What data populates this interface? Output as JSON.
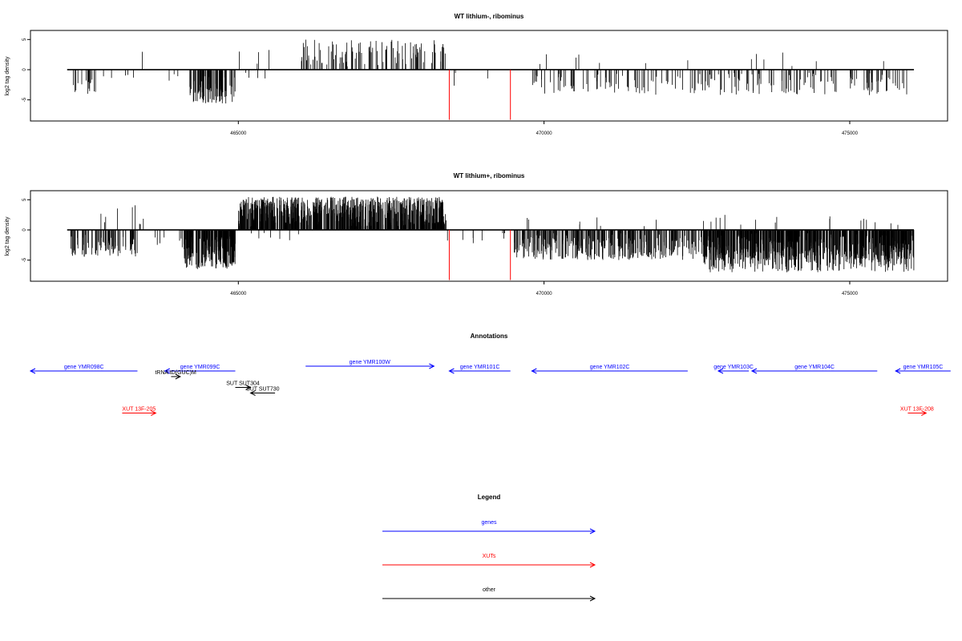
{
  "chart_data": [
    {
      "type": "bar",
      "title": "WT lithium-, ribominus",
      "ylabel": "log2 tag density",
      "xlabel": "",
      "xlim": [
        461600,
        476600
      ],
      "ylim": [
        -8.5,
        6.5
      ],
      "yticks": [
        -5,
        0,
        5
      ],
      "xticks": [
        465000,
        470000,
        475000
      ],
      "xtick_labels": [
        "465000",
        "470000",
        "475000"
      ],
      "baseline_range": [
        462200,
        476050
      ],
      "marker_positions": [
        468450,
        469450
      ],
      "marker_color": "#ff0000",
      "series": [
        {
          "segments": [
            {
              "start": 462250,
              "end": 462700,
              "density": 0.45,
              "sign": -1,
              "min": 0.8,
              "max": 4.0
            },
            {
              "start": 462700,
              "end": 463300,
              "density": 0.12,
              "sign": -1,
              "min": 0.5,
              "max": 2.0
            },
            {
              "start": 463300,
              "end": 463600,
              "density": 0.06,
              "sign": 1,
              "min": 1.0,
              "max": 3.2
            },
            {
              "start": 463600,
              "end": 464100,
              "density": 0.08,
              "sign": -1,
              "min": 0.5,
              "max": 2.0
            },
            {
              "start": 464200,
              "end": 464950,
              "density": 1.6,
              "sign": -1,
              "min": 1.0,
              "max": 5.6
            },
            {
              "start": 465000,
              "end": 465550,
              "density": 0.1,
              "sign": 1,
              "min": 0.5,
              "max": 4.0
            },
            {
              "start": 465000,
              "end": 465600,
              "density": 0.08,
              "sign": -1,
              "min": 0.3,
              "max": 1.5
            },
            {
              "start": 466000,
              "end": 468400,
              "density": 0.55,
              "sign": 1,
              "min": 0.5,
              "max": 5.0
            },
            {
              "start": 468400,
              "end": 469300,
              "density": 0.05,
              "sign": -1,
              "min": 0.5,
              "max": 3.0
            },
            {
              "start": 469800,
              "end": 476000,
              "density": 0.42,
              "sign": -1,
              "min": 0.5,
              "max": 4.2
            },
            {
              "start": 469800,
              "end": 476000,
              "density": 0.03,
              "sign": 1,
              "min": 0.5,
              "max": 3.0
            }
          ]
        }
      ]
    },
    {
      "type": "bar",
      "title": "WT lithium+, ribominus",
      "ylabel": "log2 tag density",
      "xlabel": "",
      "xlim": [
        461600,
        476600
      ],
      "ylim": [
        -8.5,
        6.5
      ],
      "yticks": [
        -5,
        0,
        5
      ],
      "xticks": [
        465000,
        470000,
        475000
      ],
      "xtick_labels": [
        "465000",
        "470000",
        "475000"
      ],
      "baseline_range": [
        462200,
        476050
      ],
      "marker_positions": [
        468450,
        469450
      ],
      "marker_color": "#ff0000",
      "series": [
        {
          "segments": [
            {
              "start": 462250,
              "end": 463350,
              "density": 1.0,
              "sign": -1,
              "min": 0.8,
              "max": 4.5
            },
            {
              "start": 462750,
              "end": 463700,
              "density": 0.12,
              "sign": 1,
              "min": 0.5,
              "max": 4.2
            },
            {
              "start": 463500,
              "end": 464100,
              "density": 0.15,
              "sign": -1,
              "min": 0.5,
              "max": 3.0
            },
            {
              "start": 464100,
              "end": 464950,
              "density": 3.0,
              "sign": -1,
              "min": 1.0,
              "max": 6.5
            },
            {
              "start": 465000,
              "end": 468400,
              "density": 2.6,
              "sign": 1,
              "min": 0.5,
              "max": 5.5
            },
            {
              "start": 465200,
              "end": 466000,
              "density": 0.12,
              "sign": -1,
              "min": 0.3,
              "max": 2.0
            },
            {
              "start": 468400,
              "end": 469400,
              "density": 0.1,
              "sign": -1,
              "min": 0.5,
              "max": 3.0
            },
            {
              "start": 469500,
              "end": 476050,
              "density": 1.3,
              "sign": -1,
              "min": 0.5,
              "max": 5.0
            },
            {
              "start": 472600,
              "end": 476050,
              "density": 1.6,
              "sign": -1,
              "min": 1.0,
              "max": 7.0
            },
            {
              "start": 469500,
              "end": 476050,
              "density": 0.05,
              "sign": 1,
              "min": 0.5,
              "max": 2.5
            }
          ]
        }
      ]
    }
  ],
  "annotations": {
    "title": "Annotations",
    "xlim": [
      461600,
      476600
    ],
    "features": [
      {
        "label": "gene YMR098C",
        "start": 461600,
        "end": 463350,
        "dir": -1,
        "color": "#0000ff",
        "row": 0
      },
      {
        "label": "gene YMR099C",
        "start": 463800,
        "end": 464950,
        "dir": -1,
        "color": "#0000ff",
        "row": 0
      },
      {
        "label": "gene YMR100W",
        "start": 466100,
        "end": 468200,
        "dir": 1,
        "color": "#0000ff",
        "row": -0.6
      },
      {
        "label": "gene YMR101C",
        "start": 468450,
        "end": 469450,
        "dir": -1,
        "color": "#0000ff",
        "row": 0
      },
      {
        "label": "gene YMR102C",
        "start": 469800,
        "end": 472350,
        "dir": -1,
        "color": "#0000ff",
        "row": 0
      },
      {
        "label": "gene YMR103C",
        "start": 472850,
        "end": 473350,
        "dir": -1,
        "color": "#0000ff",
        "row": 0
      },
      {
        "label": "gene YMR104C",
        "start": 473400,
        "end": 475450,
        "dir": -1,
        "color": "#0000ff",
        "row": 0
      },
      {
        "label": "gene YMR105C",
        "start": 475750,
        "end": 476650,
        "dir": -1,
        "color": "#0000ff",
        "row": 0
      },
      {
        "label": "tRNA tD(GUC)M",
        "start": 463900,
        "end": 464050,
        "dir": 1,
        "color": "#000000",
        "row": 0.7
      },
      {
        "label": "SUT SUT304",
        "start": 464950,
        "end": 465200,
        "dir": 1,
        "color": "#000000",
        "row": 2.05
      },
      {
        "label": "SUT SUT730",
        "start": 465200,
        "end": 465600,
        "dir": -1,
        "color": "#000000",
        "row": 2.75
      },
      {
        "label": "XUT 13F-205",
        "start": 463100,
        "end": 463650,
        "dir": 1,
        "color": "#ff0000",
        "row": 5.25
      },
      {
        "label": "XUT 13F-208",
        "start": 475950,
        "end": 476250,
        "dir": 1,
        "color": "#ff0000",
        "row": 5.25
      }
    ]
  },
  "legend": {
    "title": "Legend",
    "items": [
      {
        "label": "genes",
        "color": "#0000ff"
      },
      {
        "label": "XUTs",
        "color": "#ff0000"
      },
      {
        "label": "other",
        "color": "#000000"
      }
    ]
  }
}
